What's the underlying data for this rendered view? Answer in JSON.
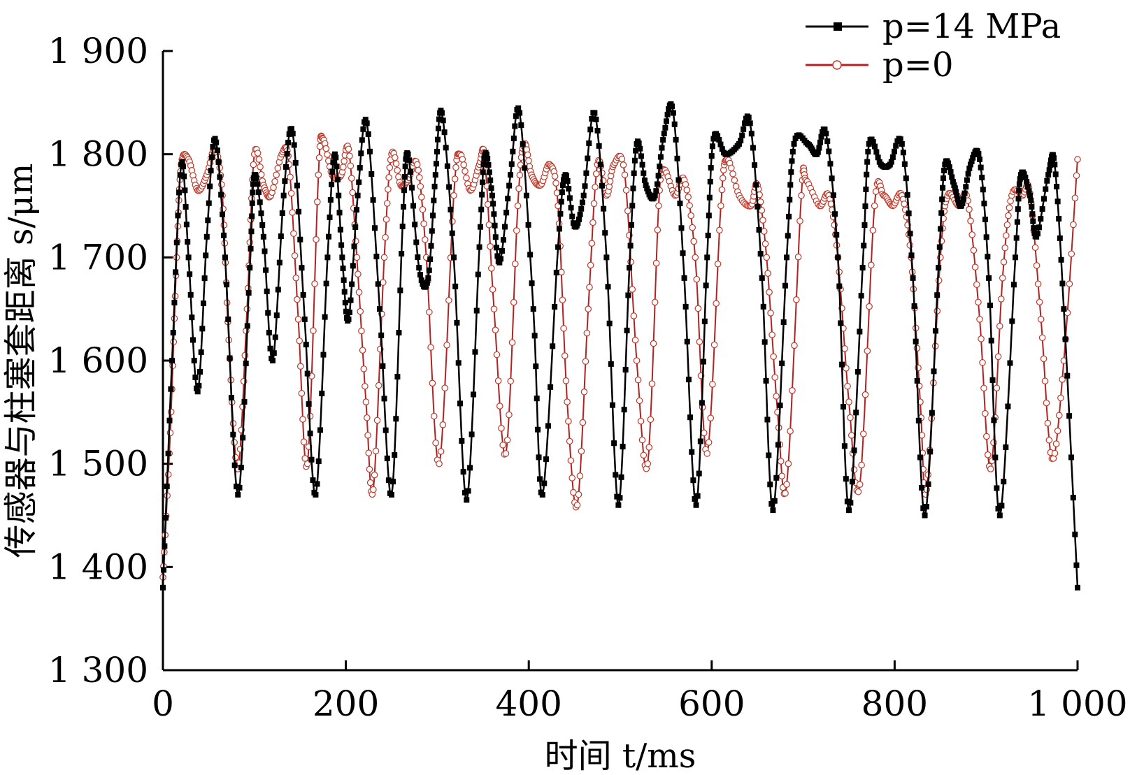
{
  "chart_data": {
    "type": "line",
    "xlabel": "时间 t/ms",
    "ylabel": "传感器与柱塞套距离 s/μm",
    "xlim": [
      0,
      1000
    ],
    "ylim": [
      1300,
      1900
    ],
    "xticks": [
      0,
      200,
      400,
      600,
      800,
      1000
    ],
    "xtick_labels": [
      "0",
      "200",
      "400",
      "600",
      "800",
      "1 000"
    ],
    "yticks": [
      1300,
      1400,
      1500,
      1600,
      1700,
      1800,
      1900
    ],
    "ytick_labels": [
      "1 300",
      "1 400",
      "1 500",
      "1 600",
      "1 700",
      "1 800",
      "1 900"
    ],
    "grid": false,
    "legend_position": "top-right",
    "series": [
      {
        "name": "p=14 MPa",
        "color": "#000000",
        "marker": "filled-square",
        "points": [
          [
            0,
            1380
          ],
          [
            10,
            1600
          ],
          [
            20,
            1790
          ],
          [
            28,
            1700
          ],
          [
            38,
            1570
          ],
          [
            48,
            1720
          ],
          [
            57,
            1815
          ],
          [
            68,
            1700
          ],
          [
            82,
            1470
          ],
          [
            95,
            1690
          ],
          [
            100,
            1780
          ],
          [
            110,
            1720
          ],
          [
            120,
            1600
          ],
          [
            132,
            1760
          ],
          [
            142,
            1820
          ],
          [
            155,
            1640
          ],
          [
            167,
            1470
          ],
          [
            180,
            1700
          ],
          [
            188,
            1800
          ],
          [
            196,
            1700
          ],
          [
            203,
            1640
          ],
          [
            213,
            1760
          ],
          [
            223,
            1830
          ],
          [
            237,
            1650
          ],
          [
            250,
            1470
          ],
          [
            262,
            1730
          ],
          [
            268,
            1800
          ],
          [
            280,
            1690
          ],
          [
            290,
            1680
          ],
          [
            298,
            1780
          ],
          [
            305,
            1840
          ],
          [
            318,
            1700
          ],
          [
            332,
            1465
          ],
          [
            346,
            1710
          ],
          [
            352,
            1800
          ],
          [
            360,
            1760
          ],
          [
            368,
            1695
          ],
          [
            380,
            1780
          ],
          [
            390,
            1840
          ],
          [
            405,
            1650
          ],
          [
            415,
            1470
          ],
          [
            432,
            1710
          ],
          [
            440,
            1780
          ],
          [
            450,
            1730
          ],
          [
            460,
            1760
          ],
          [
            472,
            1840
          ],
          [
            485,
            1700
          ],
          [
            498,
            1460
          ],
          [
            510,
            1690
          ],
          [
            518,
            1810
          ],
          [
            528,
            1770
          ],
          [
            538,
            1760
          ],
          [
            548,
            1820
          ],
          [
            558,
            1840
          ],
          [
            570,
            1680
          ],
          [
            583,
            1460
          ],
          [
            595,
            1700
          ],
          [
            602,
            1815
          ],
          [
            615,
            1800
          ],
          [
            630,
            1810
          ],
          [
            642,
            1830
          ],
          [
            655,
            1680
          ],
          [
            667,
            1455
          ],
          [
            682,
            1700
          ],
          [
            690,
            1810
          ],
          [
            705,
            1810
          ],
          [
            715,
            1800
          ],
          [
            725,
            1820
          ],
          [
            738,
            1700
          ],
          [
            750,
            1455
          ],
          [
            765,
            1690
          ],
          [
            772,
            1810
          ],
          [
            785,
            1790
          ],
          [
            795,
            1790
          ],
          [
            808,
            1810
          ],
          [
            820,
            1680
          ],
          [
            833,
            1450
          ],
          [
            848,
            1690
          ],
          [
            855,
            1790
          ],
          [
            865,
            1770
          ],
          [
            873,
            1750
          ],
          [
            883,
            1790
          ],
          [
            893,
            1795
          ],
          [
            903,
            1680
          ],
          [
            915,
            1450
          ],
          [
            932,
            1700
          ],
          [
            938,
            1780
          ],
          [
            948,
            1760
          ],
          [
            955,
            1720
          ],
          [
            968,
            1780
          ],
          [
            975,
            1790
          ],
          [
            985,
            1650
          ],
          [
            1000,
            1380
          ]
        ]
      },
      {
        "name": "p=0",
        "color": "#b22222",
        "marker": "open-circle",
        "points": [
          [
            0,
            1390
          ],
          [
            8,
            1530
          ],
          [
            15,
            1700
          ],
          [
            20,
            1790
          ],
          [
            28,
            1795
          ],
          [
            38,
            1765
          ],
          [
            48,
            1780
          ],
          [
            57,
            1805
          ],
          [
            65,
            1760
          ],
          [
            72,
            1620
          ],
          [
            82,
            1495
          ],
          [
            92,
            1650
          ],
          [
            100,
            1800
          ],
          [
            110,
            1770
          ],
          [
            118,
            1760
          ],
          [
            130,
            1800
          ],
          [
            138,
            1790
          ],
          [
            148,
            1640
          ],
          [
            158,
            1500
          ],
          [
            170,
            1780
          ],
          [
            175,
            1815
          ],
          [
            185,
            1780
          ],
          [
            195,
            1780
          ],
          [
            203,
            1805
          ],
          [
            212,
            1700
          ],
          [
            222,
            1560
          ],
          [
            230,
            1475
          ],
          [
            242,
            1700
          ],
          [
            250,
            1800
          ],
          [
            260,
            1770
          ],
          [
            268,
            1775
          ],
          [
            278,
            1790
          ],
          [
            288,
            1700
          ],
          [
            302,
            1500
          ],
          [
            318,
            1760
          ],
          [
            325,
            1800
          ],
          [
            336,
            1765
          ],
          [
            346,
            1790
          ],
          [
            352,
            1795
          ],
          [
            362,
            1650
          ],
          [
            375,
            1510
          ],
          [
            388,
            1750
          ],
          [
            395,
            1810
          ],
          [
            403,
            1780
          ],
          [
            413,
            1770
          ],
          [
            423,
            1790
          ],
          [
            432,
            1750
          ],
          [
            442,
            1560
          ],
          [
            453,
            1460
          ],
          [
            465,
            1650
          ],
          [
            475,
            1790
          ],
          [
            485,
            1760
          ],
          [
            493,
            1790
          ],
          [
            505,
            1780
          ],
          [
            518,
            1600
          ],
          [
            530,
            1500
          ],
          [
            542,
            1750
          ],
          [
            548,
            1785
          ],
          [
            560,
            1760
          ],
          [
            570,
            1775
          ],
          [
            582,
            1700
          ],
          [
            595,
            1510
          ],
          [
            610,
            1750
          ],
          [
            617,
            1795
          ],
          [
            630,
            1760
          ],
          [
            643,
            1750
          ],
          [
            650,
            1770
          ],
          [
            660,
            1700
          ],
          [
            672,
            1550
          ],
          [
            682,
            1480
          ],
          [
            698,
            1760
          ],
          [
            703,
            1775
          ],
          [
            718,
            1750
          ],
          [
            728,
            1760
          ],
          [
            738,
            1700
          ],
          [
            750,
            1560
          ],
          [
            762,
            1480
          ],
          [
            778,
            1750
          ],
          [
            788,
            1760
          ],
          [
            798,
            1750
          ],
          [
            808,
            1760
          ],
          [
            818,
            1700
          ],
          [
            828,
            1560
          ],
          [
            835,
            1475
          ],
          [
            850,
            1700
          ],
          [
            858,
            1760
          ],
          [
            870,
            1750
          ],
          [
            880,
            1755
          ],
          [
            893,
            1640
          ],
          [
            905,
            1495
          ],
          [
            918,
            1680
          ],
          [
            928,
            1760
          ],
          [
            940,
            1760
          ],
          [
            948,
            1762
          ],
          [
            960,
            1640
          ],
          [
            972,
            1505
          ],
          [
            985,
            1600
          ],
          [
            1000,
            1795
          ]
        ]
      }
    ]
  }
}
